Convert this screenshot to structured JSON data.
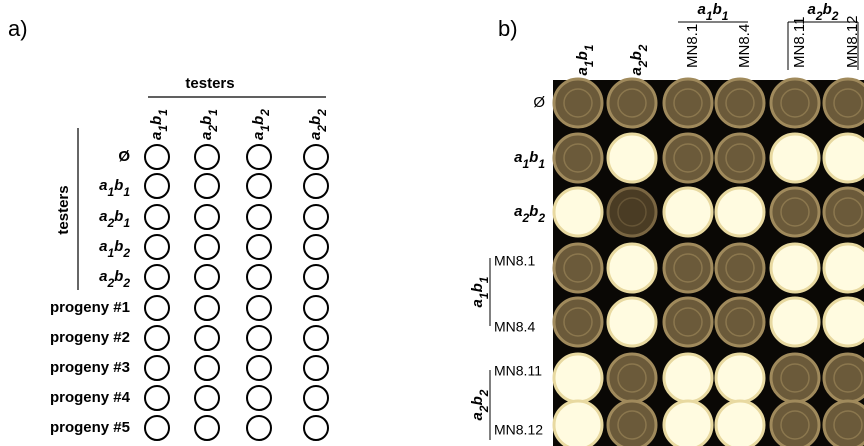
{
  "panel_a": {
    "label": "a)",
    "header": "testers",
    "side_label": "testers",
    "columns": [
      [
        "a",
        "1",
        "b",
        "1"
      ],
      [
        "a",
        "2",
        "b",
        "1"
      ],
      [
        "a",
        "1",
        "b",
        "2"
      ],
      [
        "a",
        "2",
        "b",
        "2"
      ]
    ],
    "rows": [
      "Ø",
      [
        "a",
        "1",
        "b",
        "1"
      ],
      [
        "a",
        "2",
        "b",
        "1"
      ],
      [
        "a",
        "1",
        "b",
        "2"
      ],
      [
        "a",
        "2",
        "b",
        "2"
      ],
      "progeny #1",
      "progeny #2",
      "progeny #3",
      "progeny #4",
      "progeny #5"
    ]
  },
  "panel_b": {
    "label": "b)",
    "columns": [
      [
        "a",
        "1",
        "b",
        "1"
      ],
      [
        "a",
        "2",
        "b",
        "2"
      ],
      "MN8.1",
      "MN8.4",
      "MN8.11",
      "MN8.12"
    ],
    "column_groups": [
      [
        "a",
        "1",
        "b",
        "1"
      ],
      [
        "a",
        "2",
        "b",
        "2"
      ]
    ],
    "rows": [
      "Ø",
      [
        "a",
        "1",
        "b",
        "1"
      ],
      [
        "a",
        "2",
        "b",
        "2"
      ],
      "MN8.1",
      "MN8.4",
      "MN8.11",
      "MN8.12"
    ],
    "row_groups": [
      [
        "a",
        "1",
        "b",
        "1"
      ],
      [
        "a",
        "2",
        "b",
        "2"
      ]
    ]
  }
}
